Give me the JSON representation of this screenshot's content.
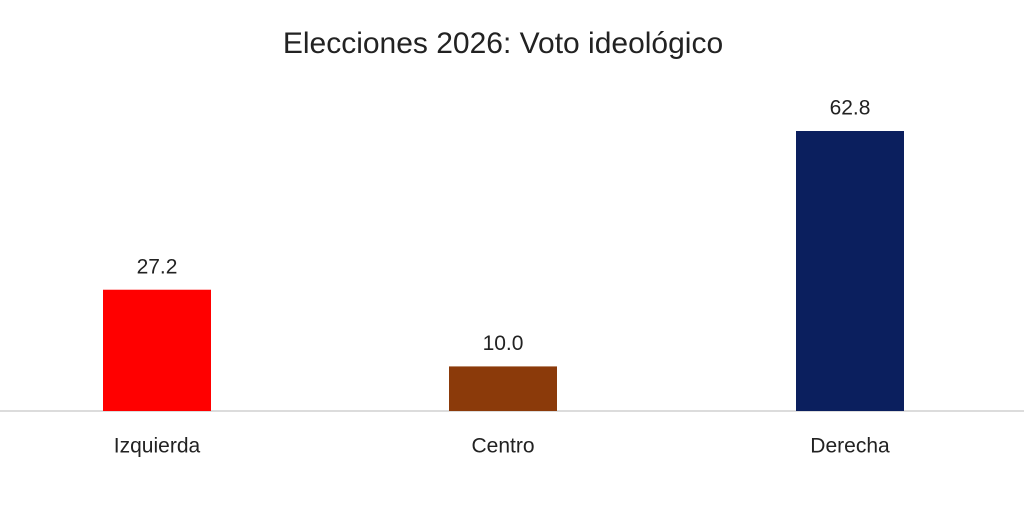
{
  "chart_data": {
    "type": "bar",
    "title": "Elecciones 2026: Voto ideológico",
    "categories": [
      "Izquierda",
      "Centro",
      "Derecha"
    ],
    "values": [
      27.2,
      10.0,
      62.8
    ],
    "value_labels": [
      "27.2",
      "10.0",
      "62.8"
    ],
    "colors": [
      "#ff0000",
      "#8b3a0a",
      "#0b1f5e"
    ]
  }
}
